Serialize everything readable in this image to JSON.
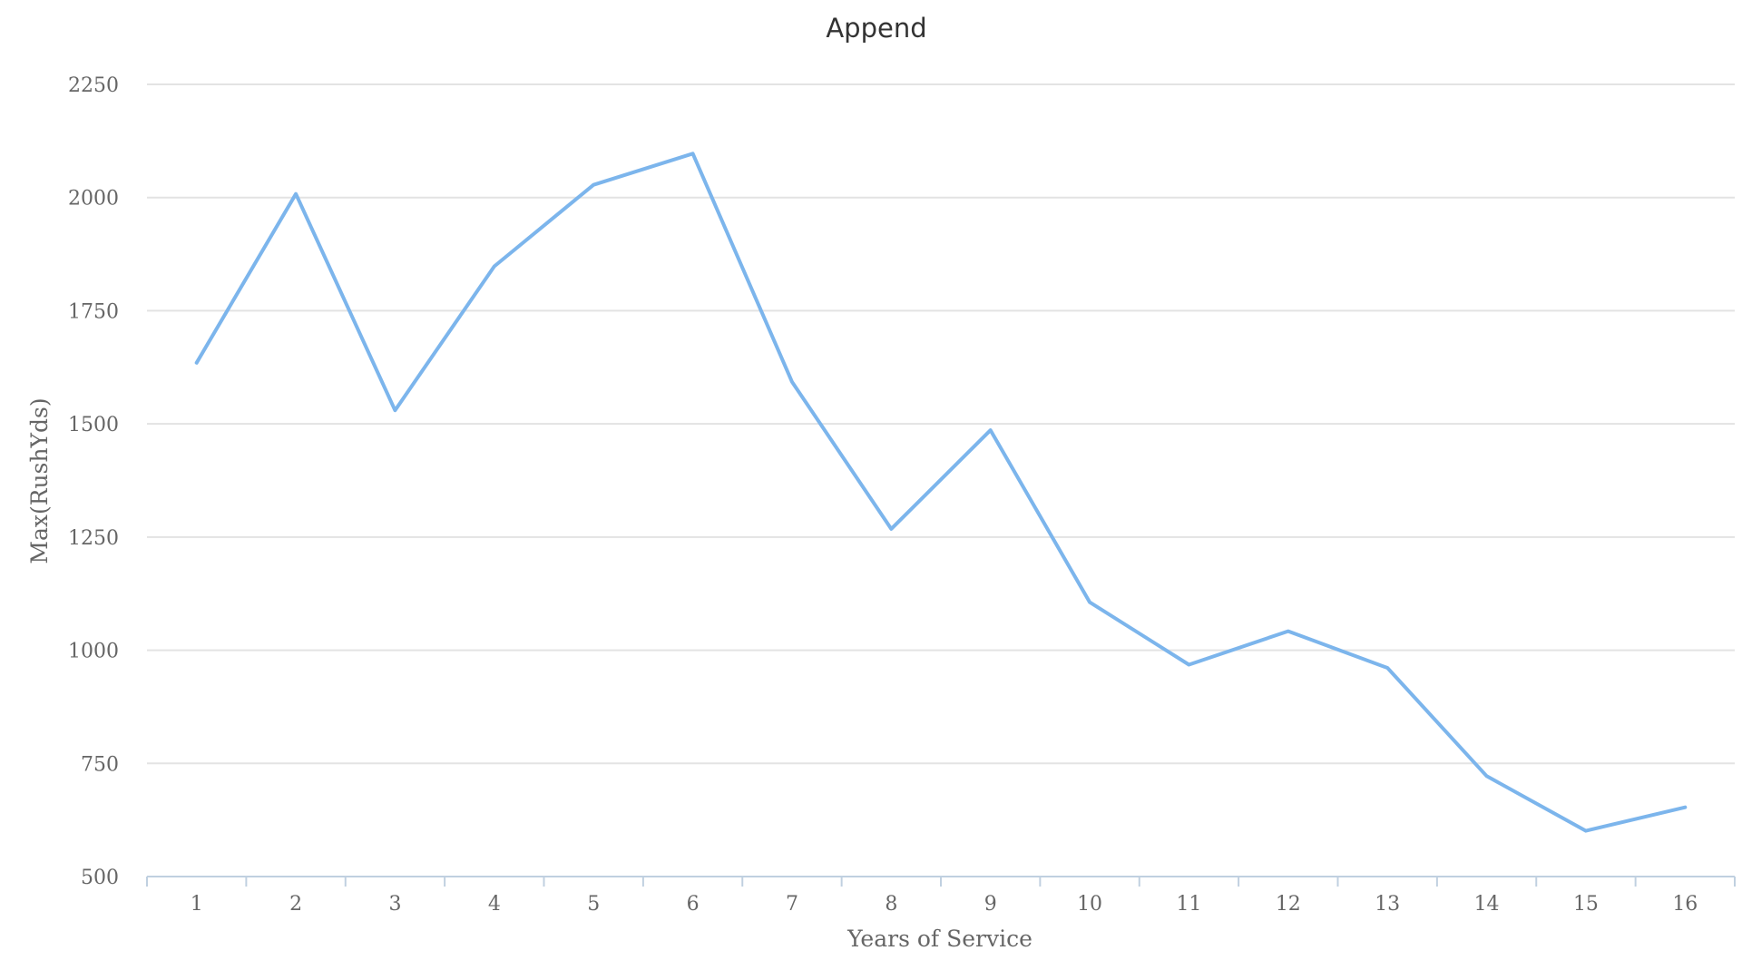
{
  "chart_data": {
    "type": "line",
    "title": "Append",
    "xlabel": "Years of Service",
    "ylabel": "Max(RushYds)",
    "categories": [
      "1",
      "2",
      "3",
      "4",
      "5",
      "6",
      "7",
      "8",
      "9",
      "10",
      "11",
      "12",
      "13",
      "14",
      "15",
      "16"
    ],
    "yticks": [
      "500",
      "750",
      "1000",
      "1250",
      "1500",
      "1750",
      "2000",
      "2250"
    ],
    "ylim": [
      500,
      2250
    ],
    "grid": true,
    "legend": "none",
    "series": [
      {
        "values": [
          1635,
          2008,
          1530,
          1848,
          2028,
          2097,
          1593,
          1268,
          1486,
          1106,
          968,
          1042,
          961,
          722,
          601,
          653
        ],
        "color": "#7cb5ec"
      }
    ]
  }
}
